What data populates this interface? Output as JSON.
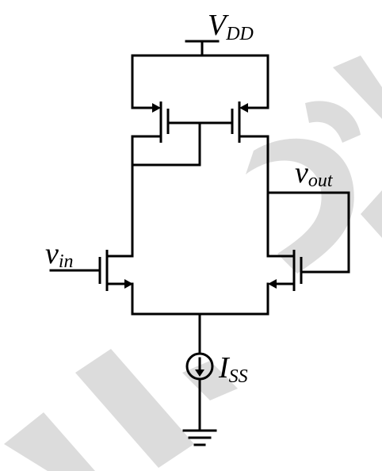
{
  "labels": {
    "vdd": {
      "main": "V",
      "sub": "DD"
    },
    "vin": {
      "main": "v",
      "sub": "in"
    },
    "vout": {
      "main": "v",
      "sub": "out"
    },
    "iss": {
      "main": "I",
      "sub": "SS"
    }
  },
  "watermark": {
    "text": "FE 2024",
    "color": "#dcdcdc"
  },
  "colors": {
    "wire": "#000000",
    "background": "#ffffff"
  }
}
